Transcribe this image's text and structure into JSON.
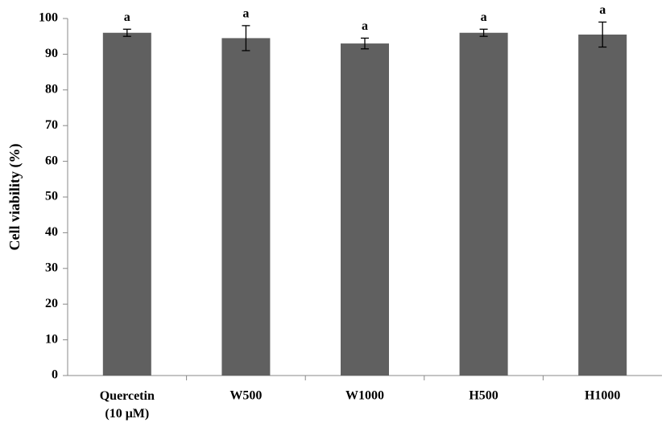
{
  "chart_data": {
    "type": "bar",
    "y_label": "Cell viability (%)",
    "categories": [
      "Quercetin (10 μM)",
      "W500",
      "W1000",
      "H500",
      "H1000"
    ],
    "values": [
      96,
      94.5,
      93,
      96,
      95.5
    ],
    "errors": [
      1,
      3.5,
      1.5,
      1,
      3.5
    ],
    "annotations": [
      "a",
      "a",
      "a",
      "a",
      "a"
    ],
    "color": "#606060",
    "ylim": [
      0,
      100
    ],
    "yticks": [
      0,
      10,
      20,
      30,
      40,
      50,
      60,
      70,
      80,
      90,
      100
    ],
    "grid": false
  }
}
